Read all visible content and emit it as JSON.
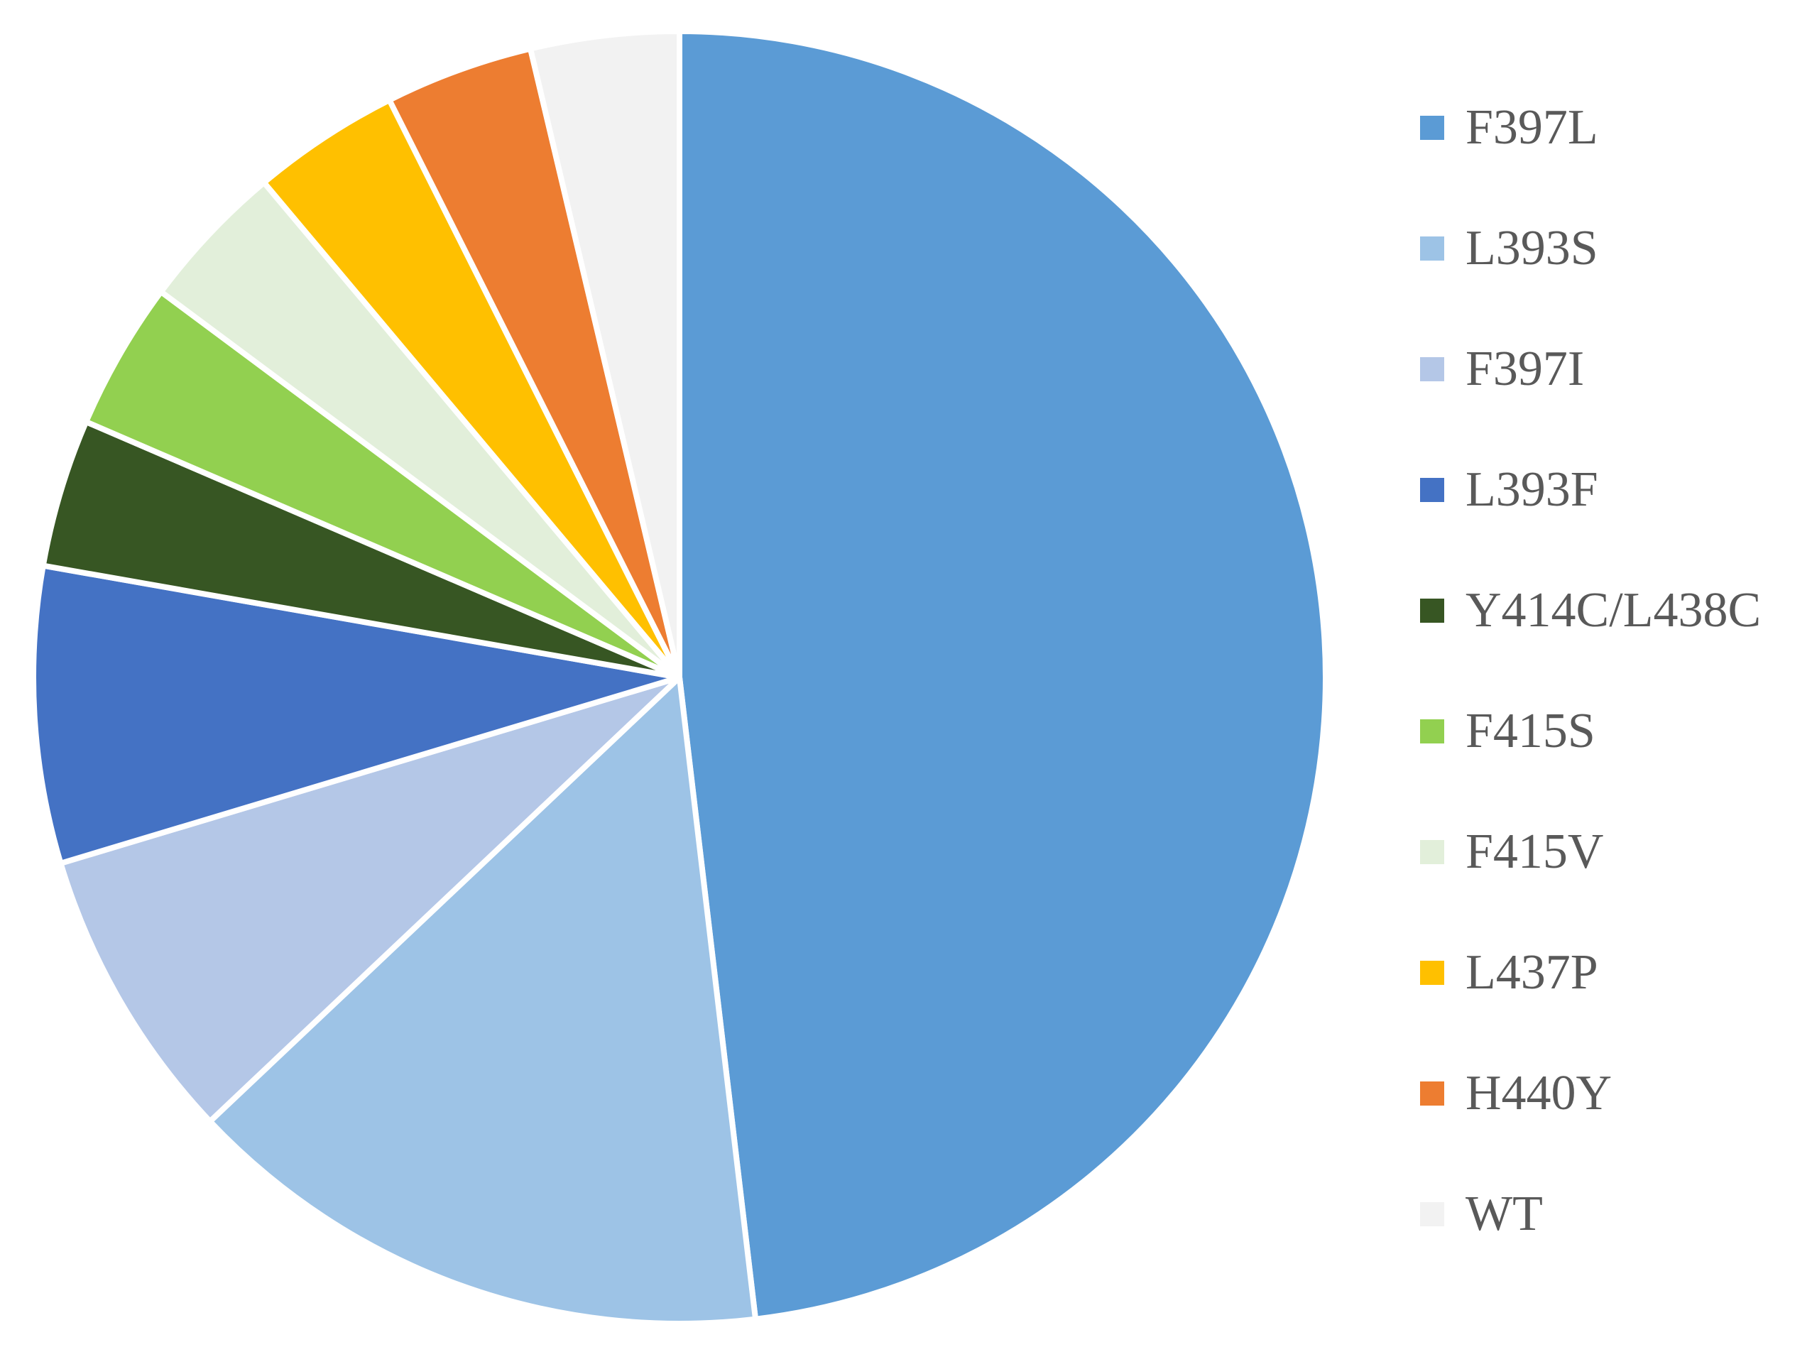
{
  "chart_data": {
    "type": "pie",
    "title": "",
    "legend_position": "right",
    "start_angle_deg": 0,
    "direction": "clockwise",
    "slices": [
      {
        "label": "F397L",
        "value": 50,
        "color": "#5B9BD5"
      },
      {
        "label": "L393S",
        "value": 15.4,
        "color": "#9DC3E6"
      },
      {
        "label": "F397I",
        "value": 7.7,
        "color": "#B4C7E7"
      },
      {
        "label": "L393F",
        "value": 7.7,
        "color": "#4472C4"
      },
      {
        "label": "Y414C/L438C",
        "value": 3.85,
        "color": "#375623"
      },
      {
        "label": "F415S",
        "value": 3.85,
        "color": "#92D050"
      },
      {
        "label": "F415V",
        "value": 3.85,
        "color": "#E2EFDA"
      },
      {
        "label": "L437P",
        "value": 3.85,
        "color": "#FFC000"
      },
      {
        "label": "H440Y",
        "value": 3.85,
        "color": "#ED7D31"
      },
      {
        "label": "WT",
        "value": 3.85,
        "color": "#F2F2F2"
      }
    ]
  }
}
